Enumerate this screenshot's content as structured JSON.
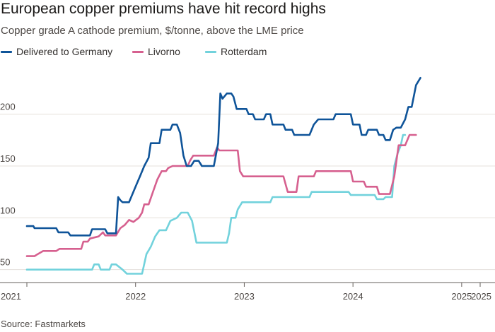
{
  "title": "European copper premiums have hit record highs",
  "subtitle": "Copper grade A cathode premium, $/tonne, above the LME price",
  "source": "Source: Fastmarkets",
  "colors": {
    "delivered": "#0f5499",
    "livorno": "#d6608f",
    "rotterdam": "#72d2dc",
    "grid": "#e5e0db",
    "axis": "#66605c"
  },
  "chart_data": {
    "type": "line",
    "ylim": [
      45,
      240
    ],
    "yticks": [
      50,
      100,
      150,
      200
    ],
    "xlim": [
      2021.0,
      2025.17
    ],
    "xticks": [
      {
        "value": 2021.0,
        "label": "2021"
      },
      {
        "value": 2022.0,
        "label": "2022"
      },
      {
        "value": 2023.0,
        "label": "2023"
      },
      {
        "value": 2024.0,
        "label": "2024"
      },
      {
        "value": 2025.0,
        "label": "2025"
      },
      {
        "value": 2025.17,
        "label": "2025"
      }
    ],
    "grid": true,
    "legend_position": "top-left",
    "series": [
      {
        "name": "Delivered to Germany",
        "color_key": "delivered",
        "points": [
          [
            2021.0,
            92
          ],
          [
            2021.06,
            92
          ],
          [
            2021.07,
            90
          ],
          [
            2021.27,
            90
          ],
          [
            2021.29,
            86
          ],
          [
            2021.38,
            86
          ],
          [
            2021.4,
            83
          ],
          [
            2021.58,
            83
          ],
          [
            2021.6,
            89
          ],
          [
            2021.72,
            89
          ],
          [
            2021.74,
            85
          ],
          [
            2021.82,
            85
          ],
          [
            2021.84,
            120
          ],
          [
            2021.86,
            117
          ],
          [
            2021.88,
            115
          ],
          [
            2021.94,
            115
          ],
          [
            2022.0,
            130
          ],
          [
            2022.04,
            140
          ],
          [
            2022.08,
            150
          ],
          [
            2022.12,
            158
          ],
          [
            2022.14,
            172
          ],
          [
            2022.22,
            172
          ],
          [
            2022.24,
            185
          ],
          [
            2022.32,
            185
          ],
          [
            2022.34,
            190
          ],
          [
            2022.38,
            190
          ],
          [
            2022.41,
            182
          ],
          [
            2022.44,
            160
          ],
          [
            2022.47,
            150
          ],
          [
            2022.51,
            150
          ],
          [
            2022.54,
            155
          ],
          [
            2022.58,
            155
          ],
          [
            2022.61,
            150
          ],
          [
            2022.72,
            150
          ],
          [
            2022.76,
            172
          ],
          [
            2022.78,
            220
          ],
          [
            2022.8,
            215
          ],
          [
            2022.84,
            220
          ],
          [
            2022.88,
            220
          ],
          [
            2022.9,
            217
          ],
          [
            2022.93,
            205
          ],
          [
            2023.02,
            205
          ],
          [
            2023.04,
            200
          ],
          [
            2023.08,
            200
          ],
          [
            2023.1,
            195
          ],
          [
            2023.18,
            195
          ],
          [
            2023.2,
            200
          ],
          [
            2023.24,
            200
          ],
          [
            2023.26,
            190
          ],
          [
            2023.36,
            190
          ],
          [
            2023.38,
            185
          ],
          [
            2023.44,
            185
          ],
          [
            2023.46,
            180
          ],
          [
            2023.6,
            180
          ],
          [
            2023.64,
            190
          ],
          [
            2023.68,
            195
          ],
          [
            2023.82,
            195
          ],
          [
            2023.84,
            200
          ],
          [
            2023.98,
            200
          ],
          [
            2024.0,
            190
          ],
          [
            2024.06,
            190
          ],
          [
            2024.08,
            180
          ],
          [
            2024.12,
            180
          ],
          [
            2024.14,
            185
          ],
          [
            2024.22,
            185
          ],
          [
            2024.24,
            180
          ],
          [
            2024.28,
            180
          ],
          [
            2024.3,
            175
          ],
          [
            2024.34,
            175
          ],
          [
            2024.37,
            185
          ],
          [
            2024.4,
            187
          ],
          [
            2024.44,
            187
          ],
          [
            2024.48,
            195
          ],
          [
            2024.51,
            207
          ],
          [
            2024.54,
            207
          ],
          [
            2024.58,
            228
          ],
          [
            2024.62,
            235
          ]
        ]
      },
      {
        "name": "Livorno",
        "color_key": "livorno",
        "points": [
          [
            2021.0,
            63
          ],
          [
            2021.07,
            63
          ],
          [
            2021.1,
            65
          ],
          [
            2021.15,
            68
          ],
          [
            2021.27,
            68
          ],
          [
            2021.3,
            70
          ],
          [
            2021.5,
            70
          ],
          [
            2021.52,
            77
          ],
          [
            2021.56,
            77
          ],
          [
            2021.58,
            80
          ],
          [
            2021.66,
            82
          ],
          [
            2021.7,
            86
          ],
          [
            2021.72,
            83
          ],
          [
            2021.82,
            83
          ],
          [
            2021.86,
            90
          ],
          [
            2021.9,
            93
          ],
          [
            2021.94,
            98
          ],
          [
            2021.98,
            96
          ],
          [
            2022.03,
            100
          ],
          [
            2022.06,
            105
          ],
          [
            2022.08,
            113
          ],
          [
            2022.12,
            113
          ],
          [
            2022.16,
            125
          ],
          [
            2022.2,
            137
          ],
          [
            2022.24,
            145
          ],
          [
            2022.28,
            145
          ],
          [
            2022.3,
            148
          ],
          [
            2022.34,
            150
          ],
          [
            2022.48,
            150
          ],
          [
            2022.5,
            155
          ],
          [
            2022.53,
            160
          ],
          [
            2022.72,
            160
          ],
          [
            2022.75,
            168
          ],
          [
            2022.77,
            165
          ],
          [
            2022.94,
            165
          ],
          [
            2022.96,
            145
          ],
          [
            2022.99,
            140
          ],
          [
            2023.36,
            140
          ],
          [
            2023.4,
            125
          ],
          [
            2023.48,
            125
          ],
          [
            2023.5,
            140
          ],
          [
            2023.64,
            140
          ],
          [
            2023.66,
            145
          ],
          [
            2023.98,
            145
          ],
          [
            2024.0,
            135
          ],
          [
            2024.1,
            135
          ],
          [
            2024.12,
            130
          ],
          [
            2024.22,
            130
          ],
          [
            2024.24,
            123
          ],
          [
            2024.34,
            123
          ],
          [
            2024.38,
            140
          ],
          [
            2024.42,
            170
          ],
          [
            2024.48,
            170
          ],
          [
            2024.52,
            180
          ],
          [
            2024.58,
            180
          ]
        ]
      },
      {
        "name": "Rotterdam",
        "color_key": "rotterdam",
        "points": [
          [
            2021.0,
            50
          ],
          [
            2021.6,
            50
          ],
          [
            2021.62,
            55
          ],
          [
            2021.66,
            55
          ],
          [
            2021.68,
            50
          ],
          [
            2021.76,
            50
          ],
          [
            2021.78,
            55
          ],
          [
            2021.82,
            55
          ],
          [
            2021.88,
            50
          ],
          [
            2021.92,
            46
          ],
          [
            2022.06,
            46
          ],
          [
            2022.1,
            65
          ],
          [
            2022.14,
            72
          ],
          [
            2022.18,
            82
          ],
          [
            2022.22,
            88
          ],
          [
            2022.28,
            88
          ],
          [
            2022.32,
            97
          ],
          [
            2022.38,
            100
          ],
          [
            2022.42,
            105
          ],
          [
            2022.48,
            105
          ],
          [
            2022.52,
            97
          ],
          [
            2022.56,
            76
          ],
          [
            2022.84,
            76
          ],
          [
            2022.86,
            85
          ],
          [
            2022.88,
            100
          ],
          [
            2022.92,
            100
          ],
          [
            2022.94,
            108
          ],
          [
            2022.98,
            115
          ],
          [
            2023.24,
            115
          ],
          [
            2023.26,
            120
          ],
          [
            2023.6,
            120
          ],
          [
            2023.62,
            125
          ],
          [
            2023.96,
            125
          ],
          [
            2023.98,
            122
          ],
          [
            2024.2,
            122
          ],
          [
            2024.22,
            118
          ],
          [
            2024.28,
            118
          ],
          [
            2024.3,
            120
          ],
          [
            2024.36,
            120
          ],
          [
            2024.38,
            150
          ],
          [
            2024.41,
            162
          ],
          [
            2024.44,
            170
          ],
          [
            2024.46,
            180
          ],
          [
            2024.48,
            180
          ]
        ]
      }
    ]
  }
}
